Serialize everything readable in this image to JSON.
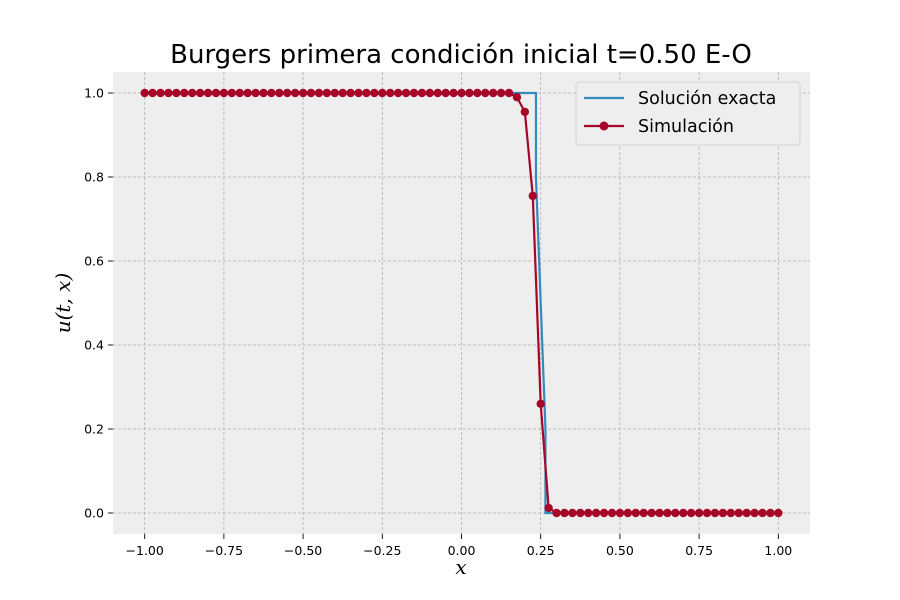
{
  "chart_data": {
    "type": "line",
    "title": "Burgers primera condición inicial t=0.50 E-O",
    "xlabel": "x",
    "ylabel": "u(t, x)",
    "xlim": [
      -1.1,
      1.1
    ],
    "ylim": [
      -0.05,
      1.05
    ],
    "xticks": [
      -1.0,
      -0.75,
      -0.5,
      -0.25,
      0.0,
      0.25,
      0.5,
      0.75,
      1.0
    ],
    "xtick_labels": [
      "−1.00",
      "−0.75",
      "−0.50",
      "−0.25",
      "0.00",
      "0.25",
      "0.50",
      "0.75",
      "1.00"
    ],
    "yticks": [
      0.0,
      0.2,
      0.4,
      0.6,
      0.8,
      1.0
    ],
    "ytick_labels": [
      "0.0",
      "0.2",
      "0.4",
      "0.6",
      "0.8",
      "1.0"
    ],
    "grid": true,
    "legend_position": "top-right",
    "series": [
      {
        "name": "Solución exacta",
        "color": "#348ABD",
        "marker": "none",
        "x": [
          -1.0,
          0.235,
          0.235,
          0.265,
          0.265,
          1.0
        ],
        "y": [
          1.0,
          1.0,
          0.8,
          0.2,
          0.0,
          0.0
        ]
      },
      {
        "name": "Simulación",
        "color": "#A60628",
        "marker": "circle",
        "x_start": -1.0,
        "x_step": 0.025,
        "count": 81,
        "override_indices": [
          47,
          48,
          49,
          50,
          51,
          52
        ],
        "override_values": [
          0.99,
          0.955,
          0.755,
          0.26,
          0.012,
          0.0
        ],
        "default_values_left": 1.0,
        "default_values_right": 0.0,
        "split_index": 47
      }
    ]
  }
}
